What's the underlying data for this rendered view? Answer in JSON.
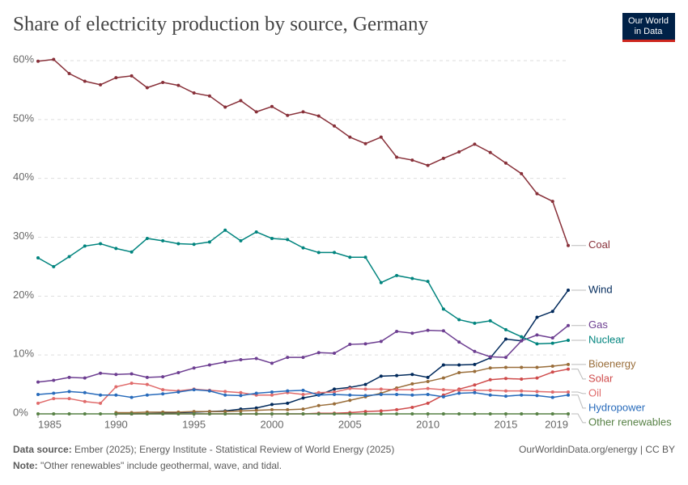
{
  "chart_data": {
    "type": "line",
    "title": "Share of electricity production by source, Germany",
    "logo": "Our World\nin Data",
    "x": [
      1985,
      1986,
      1987,
      1988,
      1989,
      1990,
      1991,
      1992,
      1993,
      1994,
      1995,
      1996,
      1997,
      1998,
      1999,
      2000,
      2001,
      2002,
      2003,
      2004,
      2005,
      2006,
      2007,
      2008,
      2009,
      2010,
      2011,
      2012,
      2013,
      2014,
      2015,
      2016,
      2017,
      2018,
      2019
    ],
    "xlim": [
      1985,
      2019
    ],
    "xticks": [
      1985,
      1990,
      1995,
      2000,
      2005,
      2010,
      2015,
      2019
    ],
    "ylim": [
      0,
      60
    ],
    "yticks": [
      {
        "value": 0,
        "label": "0%"
      },
      {
        "value": 10,
        "label": "10%"
      },
      {
        "value": 20,
        "label": "20%"
      },
      {
        "value": 30,
        "label": "30%"
      },
      {
        "value": 40,
        "label": "40%"
      },
      {
        "value": 50,
        "label": "50%"
      },
      {
        "value": 60,
        "label": "60%"
      }
    ],
    "grid": true,
    "series": [
      {
        "name": "Coal",
        "color": "#883039",
        "values": [
          59.9,
          60.2,
          57.8,
          56.5,
          55.9,
          57.1,
          57.4,
          55.4,
          56.3,
          55.8,
          54.5,
          54.0,
          52.1,
          53.2,
          51.3,
          52.2,
          50.7,
          51.3,
          50.6,
          48.9,
          47.0,
          45.9,
          47.0,
          43.6,
          43.1,
          42.2,
          43.4,
          44.5,
          45.8,
          44.4,
          42.6,
          40.8,
          37.4,
          36.1,
          28.6
        ]
      },
      {
        "name": "Wind",
        "color": "#00295b",
        "values": [
          null,
          null,
          null,
          null,
          null,
          0,
          0,
          0.05,
          0.1,
          0.2,
          0.3,
          0.4,
          0.5,
          0.8,
          1.0,
          1.6,
          1.8,
          2.7,
          3.2,
          4.2,
          4.5,
          5.0,
          6.4,
          6.5,
          6.7,
          6.2,
          8.3,
          8.3,
          8.4,
          9.5,
          12.7,
          12.4,
          16.4,
          17.4,
          21.0
        ]
      },
      {
        "name": "Gas",
        "color": "#6d3e91",
        "values": [
          5.4,
          5.7,
          6.2,
          6.1,
          6.9,
          6.7,
          6.8,
          6.2,
          6.3,
          7.0,
          7.8,
          8.3,
          8.8,
          9.2,
          9.4,
          8.6,
          9.6,
          9.6,
          10.4,
          10.3,
          11.8,
          11.9,
          12.3,
          14.0,
          13.7,
          14.2,
          14.1,
          12.2,
          10.6,
          9.7,
          9.6,
          12.4,
          13.4,
          12.9,
          15.0
        ]
      },
      {
        "name": "Nuclear",
        "color": "#00847e",
        "values": [
          26.5,
          25.0,
          26.7,
          28.5,
          28.9,
          28.1,
          27.5,
          29.8,
          29.4,
          28.9,
          28.8,
          29.2,
          31.2,
          29.4,
          30.9,
          29.8,
          29.6,
          28.2,
          27.4,
          27.4,
          26.6,
          26.6,
          22.3,
          23.5,
          23.0,
          22.5,
          17.8,
          16.0,
          15.4,
          15.8,
          14.3,
          13.1,
          11.9,
          12.0,
          12.5
        ]
      },
      {
        "name": "Bioenergy",
        "color": "#996d39",
        "values": [
          null,
          null,
          null,
          null,
          null,
          0.2,
          0.2,
          0.3,
          0.3,
          0.3,
          0.4,
          0.4,
          0.4,
          0.5,
          0.6,
          0.7,
          0.7,
          0.8,
          1.4,
          1.7,
          2.3,
          2.9,
          3.5,
          4.4,
          5.1,
          5.5,
          6.1,
          7.0,
          7.2,
          7.8,
          7.9,
          7.9,
          7.9,
          8.1,
          8.4
        ]
      },
      {
        "name": "Solar",
        "color": "#cf4b4b",
        "values": [
          null,
          null,
          null,
          null,
          null,
          0,
          0,
          0,
          0,
          0,
          0,
          0,
          0,
          0,
          0,
          0,
          0,
          0,
          0.1,
          0.1,
          0.2,
          0.4,
          0.5,
          0.7,
          1.1,
          1.8,
          3.2,
          4.2,
          4.9,
          5.8,
          6.0,
          5.9,
          6.1,
          7.1,
          7.6
        ]
      },
      {
        "name": "Oil",
        "color": "#e06b6b",
        "values": [
          1.8,
          2.6,
          2.6,
          2.1,
          1.8,
          4.6,
          5.2,
          5.0,
          4.1,
          3.9,
          4.2,
          4.0,
          3.8,
          3.6,
          3.2,
          3.2,
          3.6,
          3.3,
          3.6,
          3.7,
          4.3,
          4.2,
          4.2,
          4.1,
          4.1,
          4.3,
          4.1,
          4.0,
          4.0,
          4.0,
          3.9,
          3.9,
          3.8,
          3.7,
          3.7
        ]
      },
      {
        "name": "Hydropower",
        "color": "#286bbb",
        "values": [
          3.3,
          3.5,
          3.8,
          3.6,
          3.2,
          3.2,
          2.8,
          3.2,
          3.4,
          3.7,
          4.1,
          3.9,
          3.2,
          3.1,
          3.5,
          3.7,
          3.9,
          4.0,
          3.2,
          3.3,
          3.2,
          3.1,
          3.3,
          3.3,
          3.2,
          3.3,
          2.9,
          3.5,
          3.6,
          3.2,
          3.0,
          3.2,
          3.1,
          2.8,
          3.2
        ]
      },
      {
        "name": "Other renewables",
        "color": "#578145",
        "values": [
          0,
          0,
          0,
          0,
          0,
          0,
          0,
          0,
          0,
          0,
          0,
          0,
          0,
          0,
          0,
          0,
          0,
          0,
          0,
          0,
          0,
          0,
          0,
          0,
          0,
          0,
          0,
          0,
          0,
          0,
          0,
          0,
          0,
          0,
          0
        ]
      }
    ],
    "source_label": "Data source:",
    "source": "Ember (2025); Energy Institute - Statistical Review of World Energy (2025)",
    "credit": "OurWorldinData.org/energy | CC BY",
    "note_label": "Note:",
    "note": "\"Other renewables\" include geothermal, wave, and tidal."
  }
}
